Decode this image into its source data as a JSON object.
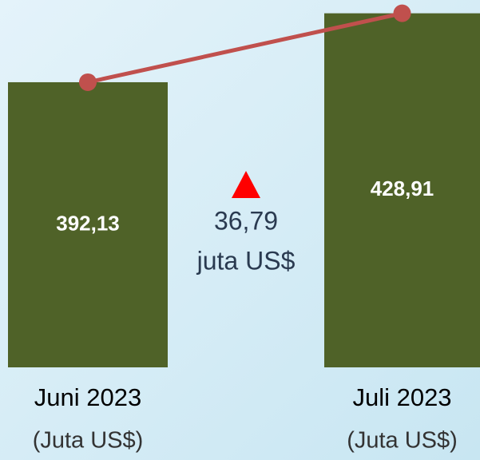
{
  "chart_data": {
    "type": "bar",
    "categories": [
      "Juni 2023",
      "Juli 2023"
    ],
    "category_sublabel": "(Juta US$)",
    "values": [
      392.13,
      428.91
    ],
    "value_labels": [
      "392,13",
      "428,91"
    ],
    "color": "#4f6228",
    "line_overlay": true,
    "line_color": "#c0504d",
    "ylim": [
      240,
      436
    ],
    "annotation": {
      "marker_color": "#ff0000",
      "text": "36,79",
      "unit": "juta US$"
    }
  }
}
